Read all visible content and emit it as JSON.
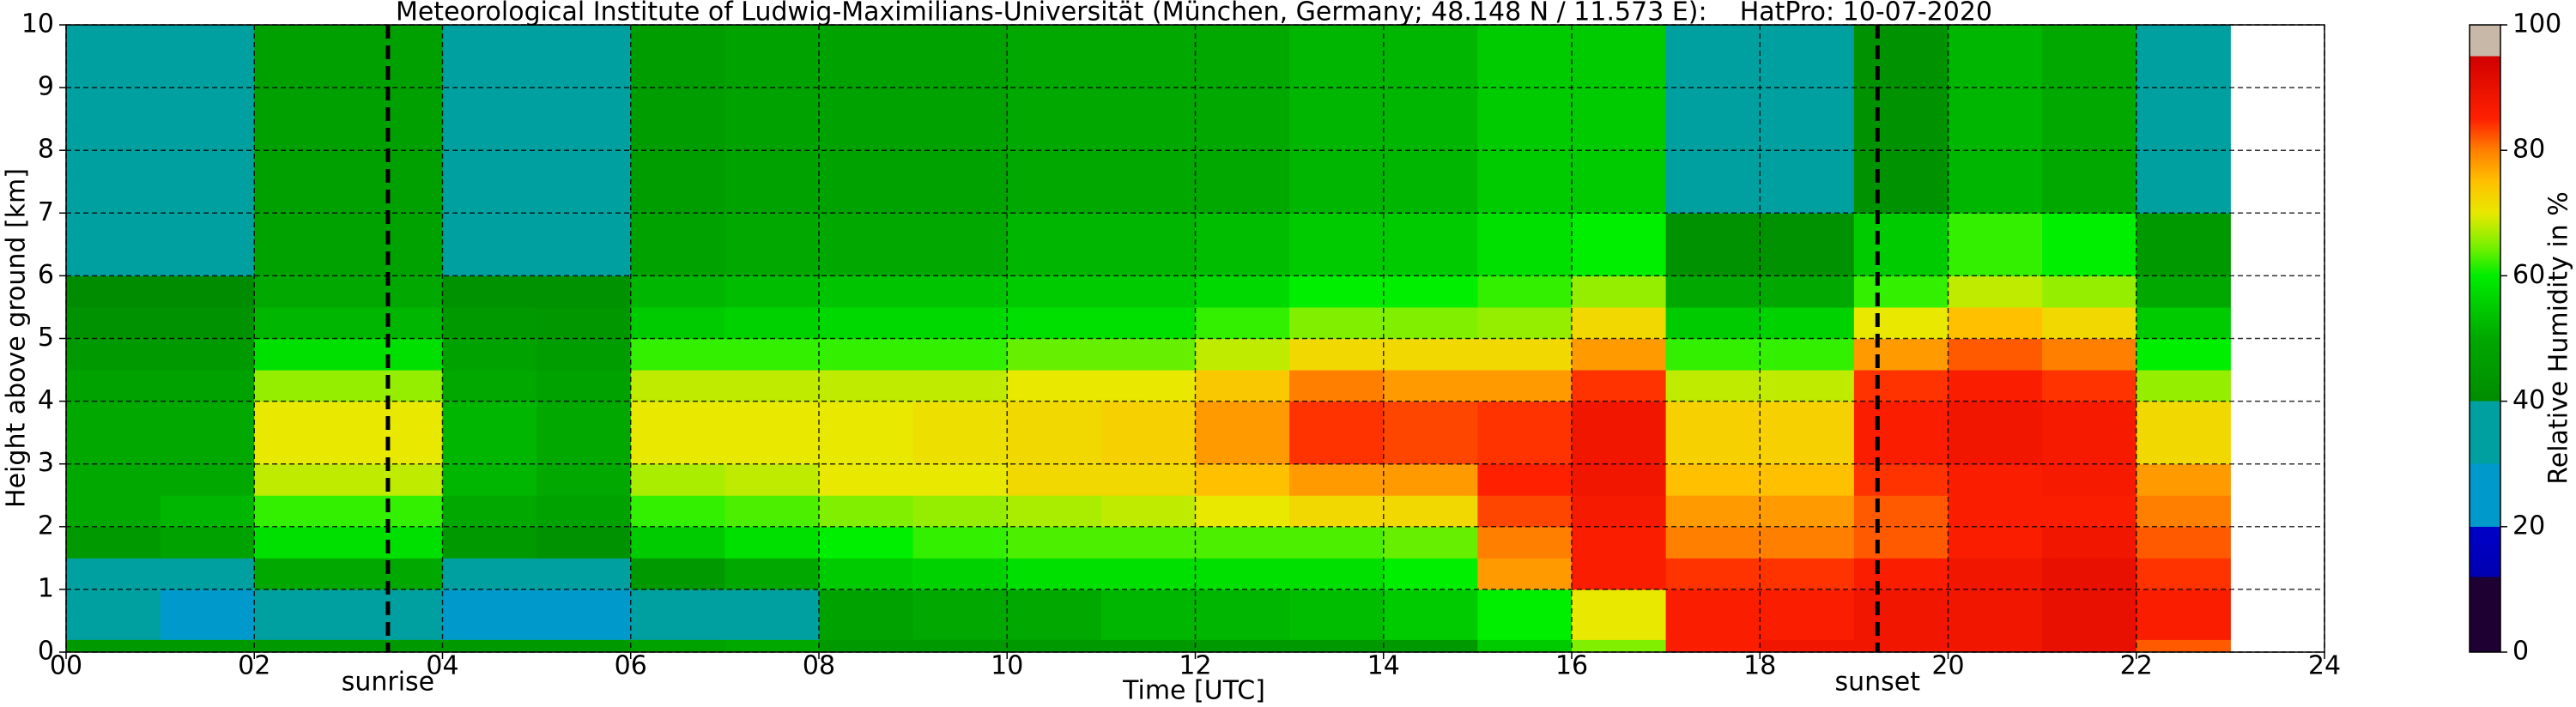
{
  "chart_data": {
    "type": "heatmap",
    "title": "Meteorological Institute of Ludwig-Maximilians-Universität (München, Germany; 48.148 N / 11.573 E):    HatPro: 10-07-2020",
    "x_label": "Time [UTC]",
    "y_label": "Height above ground [km]",
    "colorbar_label": "Relative Humidity in %",
    "xlim": [
      0,
      24
    ],
    "xticks": [
      {
        "value": 0,
        "label": "00"
      },
      {
        "value": 2,
        "label": "02"
      },
      {
        "value": 4,
        "label": "04"
      },
      {
        "value": 6,
        "label": "06"
      },
      {
        "value": 8,
        "label": "08"
      },
      10,
      12,
      14,
      16,
      18,
      20,
      22,
      24
    ],
    "ylim": [
      0,
      10
    ],
    "yticks": [
      0,
      1,
      2,
      3,
      4,
      5,
      6,
      7,
      8,
      9,
      10
    ],
    "clim": [
      0,
      100
    ],
    "cticks": [
      0,
      20,
      40,
      60,
      80,
      100
    ],
    "grid": true,
    "annotations": [
      {
        "x": 3.42,
        "label": "sunrise"
      },
      {
        "x": 19.25,
        "label": "sunset"
      }
    ],
    "colorscale": [
      [
        0,
        "#1e0033"
      ],
      [
        12,
        "#1e0033"
      ],
      [
        12,
        "#0000b0"
      ],
      [
        20,
        "#0000c8"
      ],
      [
        20,
        "#0099cc"
      ],
      [
        30,
        "#0099cc"
      ],
      [
        30,
        "#00a0a0"
      ],
      [
        40,
        "#00a0a0"
      ],
      [
        40,
        "#008c00"
      ],
      [
        50,
        "#00a800"
      ],
      [
        60,
        "#00ee00"
      ],
      [
        65,
        "#80f000"
      ],
      [
        70,
        "#e8e800"
      ],
      [
        75,
        "#ffc000"
      ],
      [
        80,
        "#ff8000"
      ],
      [
        85,
        "#ff2000"
      ],
      [
        95,
        "#d00000"
      ],
      [
        95,
        "#c8b8a8"
      ],
      [
        100,
        "#c8b8a8"
      ]
    ],
    "x_edges": [
      0,
      1,
      2,
      3,
      4,
      5,
      6,
      7,
      8,
      9,
      10,
      11,
      12,
      13,
      14,
      15,
      16,
      17,
      18,
      19,
      20,
      21,
      22,
      23
    ],
    "y_edges": [
      0,
      0.2,
      1,
      1.5,
      2,
      2.5,
      3,
      4,
      4.5,
      5,
      5.5,
      6,
      7,
      10
    ],
    "z": [
      [
        45,
        45,
        45,
        45,
        45,
        45,
        48,
        50,
        45,
        45,
        45,
        45,
        45,
        45,
        45,
        55,
        65,
        86,
        88,
        88,
        88,
        90,
        82
      ],
      [
        30,
        28,
        35,
        35,
        27,
        27,
        33,
        38,
        48,
        50,
        50,
        52,
        52,
        53,
        55,
        60,
        70,
        86,
        86,
        88,
        88,
        90,
        86
      ],
      [
        38,
        38,
        50,
        50,
        35,
        33,
        45,
        50,
        55,
        56,
        58,
        58,
        58,
        58,
        60,
        78,
        86,
        84,
        84,
        86,
        88,
        90,
        84
      ],
      [
        45,
        48,
        58,
        58,
        45,
        42,
        55,
        58,
        60,
        62,
        63,
        63,
        63,
        63,
        64,
        80,
        86,
        80,
        80,
        82,
        86,
        88,
        82
      ],
      [
        50,
        52,
        62,
        62,
        50,
        48,
        62,
        63,
        65,
        66,
        67,
        68,
        70,
        72,
        72,
        83,
        87,
        78,
        78,
        82,
        86,
        86,
        80
      ],
      [
        50,
        50,
        68,
        68,
        52,
        50,
        67,
        68,
        70,
        70,
        72,
        72,
        75,
        78,
        78,
        85,
        88,
        75,
        75,
        84,
        86,
        87,
        78
      ],
      [
        50,
        50,
        70,
        70,
        52,
        50,
        70,
        70,
        70,
        71,
        72,
        73,
        78,
        84,
        83,
        84,
        88,
        73,
        73,
        86,
        88,
        87,
        72
      ],
      [
        48,
        48,
        66,
        66,
        50,
        48,
        68,
        68,
        68,
        68,
        70,
        70,
        74,
        80,
        78,
        78,
        84,
        68,
        68,
        84,
        86,
        84,
        66
      ],
      [
        45,
        45,
        58,
        58,
        48,
        46,
        62,
        62,
        62,
        62,
        64,
        64,
        68,
        72,
        72,
        72,
        78,
        62,
        62,
        78,
        82,
        80,
        60
      ],
      [
        42,
        42,
        52,
        52,
        45,
        44,
        55,
        56,
        57,
        57,
        58,
        58,
        62,
        65,
        65,
        66,
        72,
        55,
        56,
        70,
        75,
        72,
        55
      ],
      [
        40,
        40,
        50,
        50,
        42,
        42,
        52,
        53,
        54,
        54,
        55,
        55,
        57,
        60,
        60,
        62,
        66,
        50,
        50,
        62,
        68,
        66,
        50
      ],
      [
        38,
        38,
        48,
        48,
        38,
        38,
        48,
        50,
        50,
        50,
        52,
        52,
        53,
        55,
        55,
        58,
        60,
        42,
        42,
        55,
        62,
        60,
        45
      ],
      [
        38,
        38,
        47,
        47,
        36,
        36,
        46,
        48,
        48,
        48,
        50,
        50,
        50,
        52,
        52,
        55,
        55,
        35,
        35,
        42,
        52,
        50,
        38
      ]
    ]
  }
}
